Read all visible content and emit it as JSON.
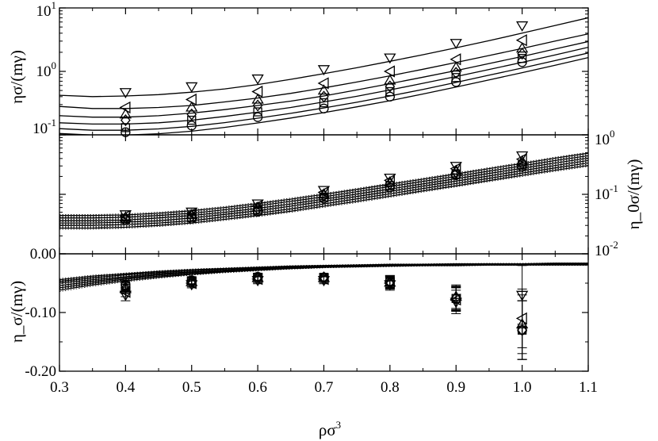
{
  "chart_data": [
    {
      "type": "scatter",
      "panel": "top",
      "ylabel": "ησ/(mγ)",
      "yscale": "log",
      "ylim": [
        0.1,
        10
      ],
      "xlim": [
        0.3,
        1.1
      ],
      "yticks": [
        {
          "value": 0.1,
          "base": "10",
          "exp": "-1"
        },
        {
          "value": 1,
          "base": "10",
          "exp": "0"
        },
        {
          "value": 10,
          "base": "10",
          "exp": "1"
        }
      ],
      "x": [
        0.4,
        0.5,
        0.6,
        0.7,
        0.8,
        0.9,
        1.0
      ],
      "series": [
        {
          "marker": "triangle-down",
          "values": [
            0.47,
            0.58,
            0.77,
            1.08,
            1.65,
            2.8,
            5.3
          ],
          "fit": [
            0.42,
            0.4,
            0.41,
            0.43,
            0.47,
            0.53,
            0.62,
            0.75,
            0.92,
            1.14,
            1.44,
            1.83,
            2.35,
            3.05,
            4.0,
            5.3,
            7.0
          ]
        },
        {
          "marker": "triangle-left",
          "values": [
            0.27,
            0.36,
            0.48,
            0.65,
            1.0,
            1.55,
            3.1
          ],
          "fit": [
            0.28,
            0.26,
            0.26,
            0.27,
            0.29,
            0.33,
            0.38,
            0.45,
            0.55,
            0.68,
            0.85,
            1.08,
            1.38,
            1.78,
            2.3,
            3.0,
            3.9
          ]
        },
        {
          "marker": "triangle-up",
          "values": [
            0.21,
            0.27,
            0.36,
            0.5,
            0.72,
            1.15,
            2.3
          ],
          "fit": [
            0.2,
            0.19,
            0.19,
            0.2,
            0.22,
            0.25,
            0.29,
            0.34,
            0.41,
            0.51,
            0.64,
            0.81,
            1.03,
            1.33,
            1.72,
            2.25,
            2.95
          ]
        },
        {
          "marker": "diamond",
          "values": [
            0.17,
            0.21,
            0.29,
            0.4,
            0.58,
            0.95,
            1.9
          ],
          "fit": [
            0.155,
            0.148,
            0.148,
            0.155,
            0.17,
            0.195,
            0.228,
            0.27,
            0.33,
            0.405,
            0.51,
            0.65,
            0.83,
            1.07,
            1.39,
            1.82,
            2.4
          ]
        },
        {
          "marker": "square",
          "values": [
            0.13,
            0.17,
            0.23,
            0.32,
            0.48,
            0.8,
            1.6
          ],
          "fit": [
            0.125,
            0.118,
            0.118,
            0.124,
            0.136,
            0.156,
            0.183,
            0.218,
            0.265,
            0.326,
            0.41,
            0.52,
            0.67,
            0.87,
            1.13,
            1.48,
            1.95
          ]
        },
        {
          "marker": "circle",
          "values": [
            0.11,
            0.14,
            0.19,
            0.26,
            0.4,
            0.68,
            1.4
          ],
          "fit": [
            0.105,
            0.099,
            0.099,
            0.104,
            0.114,
            0.131,
            0.154,
            0.184,
            0.224,
            0.276,
            0.345,
            0.44,
            0.565,
            0.735,
            0.955,
            1.25,
            1.65
          ]
        }
      ]
    },
    {
      "type": "scatter",
      "panel": "middle",
      "ylabel": "η_0σ/(mγ)",
      "yscale": "log",
      "ylim": [
        0.01,
        1
      ],
      "xlim": [
        0.3,
        1.1
      ],
      "yticks": [
        {
          "value": 0.01,
          "base": "10",
          "exp": "-2"
        },
        {
          "value": 0.1,
          "base": "10",
          "exp": "-1"
        },
        {
          "value": 1,
          "base": "10",
          "exp": "0"
        }
      ],
      "x": [
        0.4,
        0.5,
        0.6,
        0.7,
        0.8,
        0.9,
        1.0
      ],
      "series": [
        {
          "marker": "triangle-down",
          "values": [
            0.046,
            0.051,
            0.07,
            0.118,
            0.19,
            0.3,
            0.45
          ],
          "fit": [
            0.044,
            0.044,
            0.045,
            0.048,
            0.053,
            0.06,
            0.07,
            0.083,
            0.1,
            0.121,
            0.148,
            0.18,
            0.22,
            0.27,
            0.33,
            0.405,
            0.49
          ]
        },
        {
          "marker": "triangle-left",
          "values": [
            0.043,
            0.047,
            0.064,
            0.108,
            0.172,
            0.27,
            0.39
          ],
          "fit": [
            0.04,
            0.04,
            0.041,
            0.044,
            0.048,
            0.055,
            0.064,
            0.076,
            0.091,
            0.111,
            0.135,
            0.165,
            0.2,
            0.246,
            0.3,
            0.37,
            0.445
          ]
        },
        {
          "marker": "triangle-up",
          "values": [
            0.041,
            0.045,
            0.06,
            0.1,
            0.16,
            0.25,
            0.36
          ],
          "fit": [
            0.036,
            0.036,
            0.037,
            0.04,
            0.044,
            0.05,
            0.058,
            0.069,
            0.083,
            0.101,
            0.123,
            0.15,
            0.183,
            0.224,
            0.274,
            0.336,
            0.405
          ]
        },
        {
          "marker": "diamond",
          "values": [
            0.04,
            0.043,
            0.057,
            0.095,
            0.15,
            0.235,
            0.33
          ],
          "fit": [
            0.033,
            0.033,
            0.034,
            0.036,
            0.04,
            0.046,
            0.053,
            0.063,
            0.076,
            0.092,
            0.112,
            0.137,
            0.167,
            0.204,
            0.25,
            0.306,
            0.37
          ]
        },
        {
          "marker": "square",
          "values": [
            0.039,
            0.041,
            0.054,
            0.09,
            0.14,
            0.22,
            0.31
          ],
          "fit": [
            0.03,
            0.03,
            0.031,
            0.033,
            0.036,
            0.042,
            0.048,
            0.057,
            0.069,
            0.084,
            0.102,
            0.125,
            0.152,
            0.186,
            0.228,
            0.278,
            0.336
          ]
        },
        {
          "marker": "circle",
          "values": [
            0.037,
            0.039,
            0.051,
            0.085,
            0.13,
            0.21,
            0.29
          ],
          "fit": [
            0.027,
            0.027,
            0.028,
            0.03,
            0.033,
            0.038,
            0.044,
            0.052,
            0.063,
            0.076,
            0.093,
            0.114,
            0.139,
            0.17,
            0.208,
            0.254,
            0.306
          ]
        }
      ]
    },
    {
      "type": "scatter",
      "panel": "bottom",
      "ylabel": "η_σ/(mγ)",
      "xlabel": "ρσ3",
      "xlabel_base": "ρσ",
      "xlabel_exp": "3",
      "ylim": [
        -0.2,
        0.0
      ],
      "xlim": [
        0.3,
        1.1
      ],
      "yticks": [
        {
          "value": 0.0,
          "label": "0.00"
        },
        {
          "value": -0.1,
          "label": "-0.10"
        },
        {
          "value": -0.2,
          "label": "-0.20"
        }
      ],
      "xticks": [
        {
          "value": 0.3,
          "label": "0.3"
        },
        {
          "value": 0.4,
          "label": "0.4"
        },
        {
          "value": 0.5,
          "label": "0.5"
        },
        {
          "value": 0.6,
          "label": "0.6"
        },
        {
          "value": 0.7,
          "label": "0.7"
        },
        {
          "value": 0.8,
          "label": "0.8"
        },
        {
          "value": 0.9,
          "label": "0.9"
        },
        {
          "value": 1.0,
          "label": "1.0"
        },
        {
          "value": 1.1,
          "label": "1.1"
        }
      ],
      "x": [
        0.4,
        0.5,
        0.6,
        0.7,
        0.8,
        0.9,
        1.0
      ],
      "series": [
        {
          "marker": "triangle-down",
          "values": [
            -0.07,
            -0.052,
            -0.045,
            -0.045,
            -0.052,
            -0.082,
            -0.07
          ],
          "err": [
            0.01,
            0.006,
            0.006,
            0.006,
            0.01,
            0.02,
            0.05
          ],
          "fit": [
            -0.062,
            -0.053,
            -0.046,
            -0.04,
            -0.035,
            -0.031,
            -0.028,
            -0.025,
            -0.023,
            -0.022,
            -0.021,
            -0.02,
            -0.02,
            -0.019,
            -0.019,
            -0.019,
            -0.019
          ]
        },
        {
          "marker": "triangle-left",
          "values": [
            -0.065,
            -0.05,
            -0.043,
            -0.043,
            -0.05,
            -0.078,
            -0.11
          ],
          "err": [
            0.008,
            0.006,
            0.006,
            0.006,
            0.01,
            0.02,
            0.05
          ],
          "fit": [
            -0.058,
            -0.05,
            -0.043,
            -0.038,
            -0.034,
            -0.03,
            -0.027,
            -0.025,
            -0.023,
            -0.021,
            -0.02,
            -0.02,
            -0.019,
            -0.019,
            -0.019,
            -0.018,
            -0.018
          ]
        },
        {
          "marker": "triangle-up",
          "values": [
            -0.06,
            -0.048,
            -0.041,
            -0.041,
            -0.049,
            -0.073,
            -0.12
          ],
          "err": [
            0.008,
            0.006,
            0.006,
            0.006,
            0.01,
            0.02,
            0.05
          ],
          "fit": [
            -0.054,
            -0.047,
            -0.041,
            -0.036,
            -0.032,
            -0.029,
            -0.026,
            -0.024,
            -0.022,
            -0.021,
            -0.02,
            -0.019,
            -0.019,
            -0.018,
            -0.018,
            -0.018,
            -0.018
          ]
        },
        {
          "marker": "diamond",
          "values": [
            -0.058,
            -0.047,
            -0.04,
            -0.04,
            -0.048,
            -0.075,
            -0.13
          ],
          "err": [
            0.008,
            0.006,
            0.006,
            0.006,
            0.01,
            0.02,
            0.05
          ],
          "fit": [
            -0.05,
            -0.044,
            -0.039,
            -0.034,
            -0.031,
            -0.028,
            -0.025,
            -0.023,
            -0.021,
            -0.02,
            -0.019,
            -0.019,
            -0.018,
            -0.018,
            -0.018,
            -0.017,
            -0.017
          ]
        },
        {
          "marker": "square",
          "values": [
            -0.055,
            -0.046,
            -0.04,
            -0.04,
            -0.047,
            -0.076,
            -0.13
          ],
          "err": [
            0.008,
            0.006,
            0.006,
            0.006,
            0.01,
            0.02,
            0.05
          ],
          "fit": [
            -0.047,
            -0.041,
            -0.036,
            -0.032,
            -0.029,
            -0.026,
            -0.024,
            -0.022,
            -0.021,
            -0.02,
            -0.019,
            -0.018,
            -0.018,
            -0.017,
            -0.017,
            -0.017,
            -0.017
          ]
        },
        {
          "marker": "circle",
          "values": [
            -0.053,
            -0.045,
            -0.039,
            -0.04,
            -0.047,
            -0.077,
            -0.13
          ],
          "err": [
            0.008,
            0.006,
            0.006,
            0.006,
            0.01,
            0.02,
            0.05
          ],
          "fit": [
            -0.044,
            -0.038,
            -0.034,
            -0.03,
            -0.027,
            -0.025,
            -0.023,
            -0.021,
            -0.02,
            -0.019,
            -0.018,
            -0.018,
            -0.017,
            -0.017,
            -0.017,
            -0.016,
            -0.016
          ]
        }
      ]
    }
  ]
}
